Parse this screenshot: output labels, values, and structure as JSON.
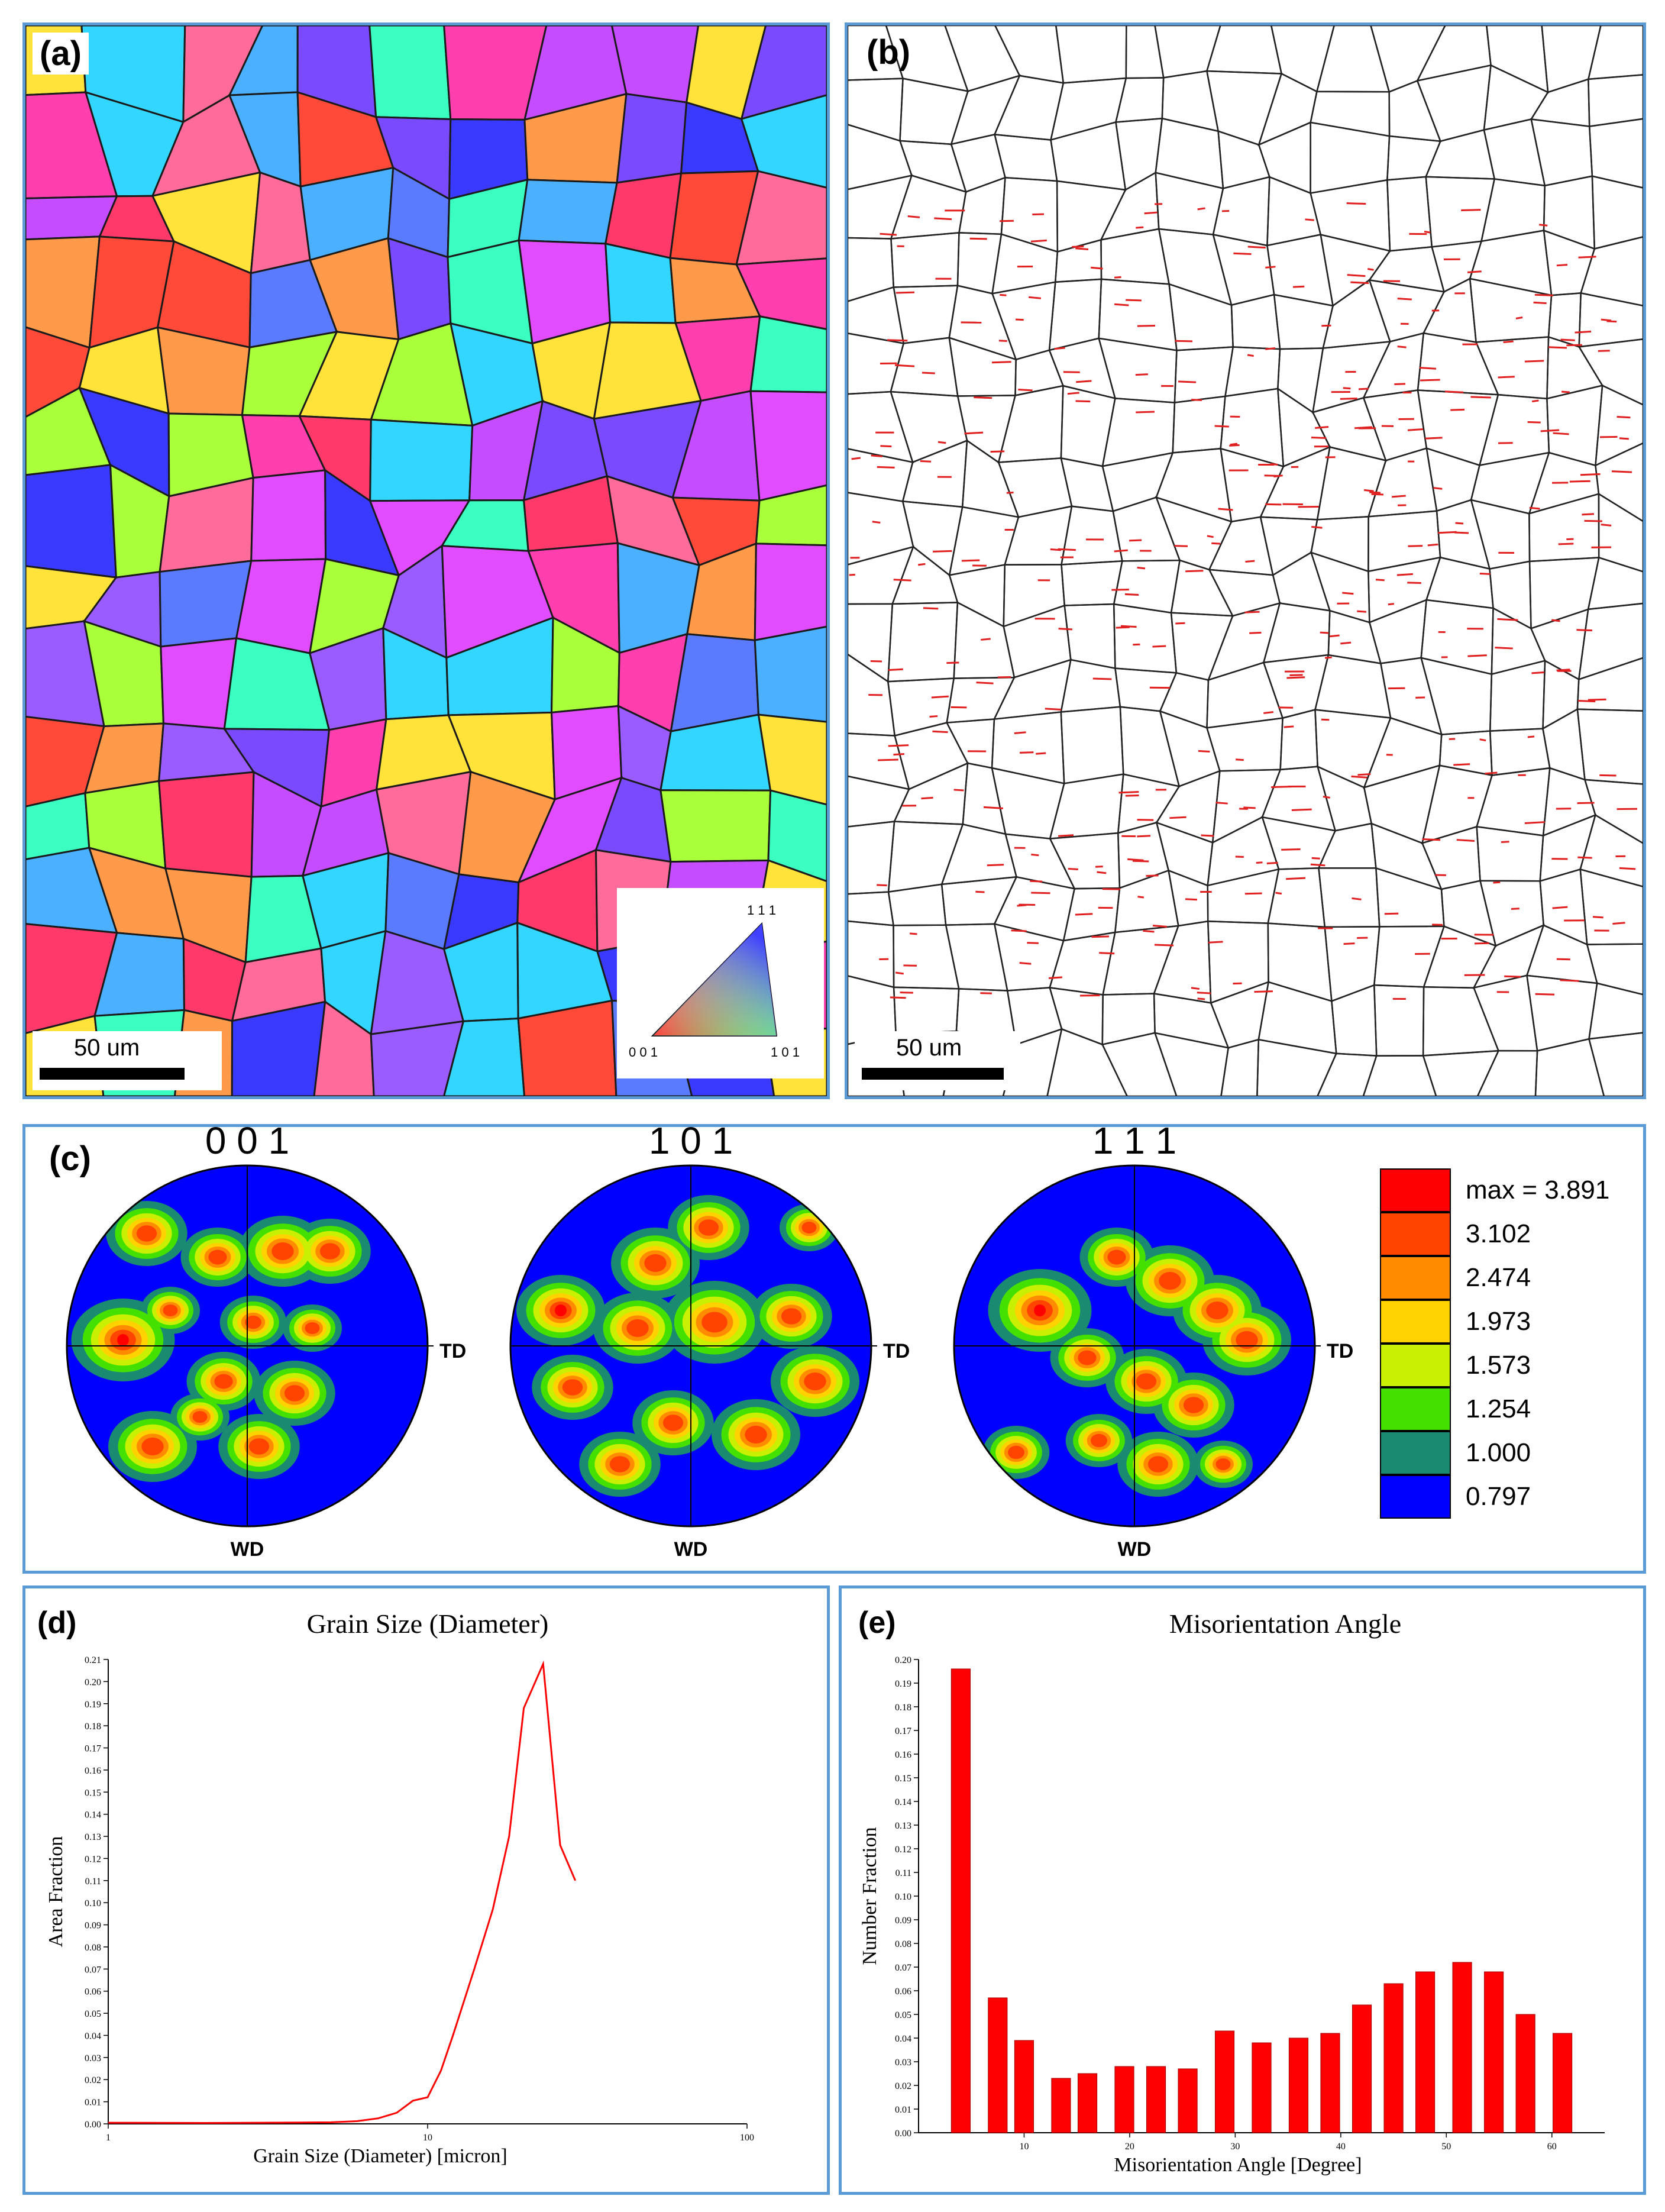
{
  "panel_a": {
    "label": "(a)",
    "scale_bar": "50 um",
    "ipf_key": {
      "top": "1 1 1",
      "left": "0 0 1",
      "right": "1 0 1"
    }
  },
  "panel_b": {
    "label": "(b)",
    "scale_bar": "50 um"
  },
  "panel_c": {
    "label": "(c)",
    "pole_figures": [
      {
        "title": "0 0 1",
        "right": "TD",
        "bottom": "WD"
      },
      {
        "title": "1 0 1",
        "right": "TD",
        "bottom": "WD"
      },
      {
        "title": "1 1 1",
        "right": "TD",
        "bottom": "WD"
      }
    ],
    "legend": {
      "labels": [
        "max = 3.891",
        "3.102",
        "2.474",
        "1.973",
        "1.573",
        "1.254",
        "1.000",
        "0.797"
      ],
      "colors": [
        "#ff0000",
        "#ff4400",
        "#ff8c00",
        "#ffd200",
        "#c8f000",
        "#44e000",
        "#1a8a70",
        "#0000ff"
      ]
    }
  },
  "chart_data": [
    {
      "type": "line",
      "panel_label": "(d)",
      "title": "Grain Size (Diameter)",
      "xlabel": "Grain Size (Diameter) [micron]",
      "ylabel": "Area Fraction",
      "xscale": "log",
      "xlim": [
        1,
        100
      ],
      "ylim": [
        0,
        0.21
      ],
      "x_ticks": [
        "1",
        "10",
        "100"
      ],
      "y_ticks": [
        "0.00",
        "0.01",
        "0.02",
        "0.03",
        "0.04",
        "0.05",
        "0.06",
        "0.07",
        "0.08",
        "0.09",
        "0.10",
        "0.11",
        "0.12",
        "0.13",
        "0.14",
        "0.15",
        "0.16",
        "0.17",
        "0.18",
        "0.19",
        "0.20",
        "0.21"
      ],
      "series": [
        {
          "color": "#ff0000",
          "x": [
            1.0,
            2.0,
            3.0,
            4.0,
            5.0,
            6.0,
            7.0,
            8.0,
            9.0,
            10.0,
            11.0,
            12.0,
            14.0,
            16.0,
            18.0,
            20.0,
            23.0,
            26.0,
            29.0,
            33.0,
            37.0,
            42.0
          ],
          "y": [
            0.0005,
            0.0004,
            0.0005,
            0.0006,
            0.0007,
            0.0012,
            0.0025,
            0.005,
            0.0105,
            0.012,
            0.024,
            0.04,
            0.07,
            0.097,
            0.13,
            0.188,
            0.208,
            0.126,
            0.11,
            null,
            null,
            null
          ]
        }
      ]
    },
    {
      "type": "bar",
      "panel_label": "(e)",
      "title": "Misorientation Angle",
      "xlabel": "Misorientation Angle [Degree]",
      "ylabel": "Number Fraction",
      "xlim": [
        0,
        65
      ],
      "ylim": [
        0,
        0.2
      ],
      "x_ticks": [
        "10",
        "20",
        "30",
        "40",
        "50",
        "60"
      ],
      "y_ticks": [
        "0.00",
        "0.01",
        "0.02",
        "0.03",
        "0.04",
        "0.05",
        "0.06",
        "0.07",
        "0.08",
        "0.09",
        "0.10",
        "0.11",
        "0.12",
        "0.13",
        "0.14",
        "0.15",
        "0.16",
        "0.17",
        "0.18",
        "0.19",
        "0.20"
      ],
      "series": [
        {
          "color": "#ff0000",
          "x": [
            4,
            7.5,
            10,
            13.5,
            16,
            19.5,
            22.5,
            25.5,
            29,
            32.5,
            36,
            39,
            42,
            45,
            48,
            51.5,
            54.5,
            57.5,
            61
          ],
          "y": [
            0.196,
            0.057,
            0.039,
            0.023,
            0.025,
            0.028,
            0.028,
            0.027,
            0.043,
            0.038,
            0.04,
            0.042,
            0.054,
            0.063,
            0.068,
            0.072,
            0.068,
            0.05,
            0.042
          ]
        }
      ]
    }
  ]
}
